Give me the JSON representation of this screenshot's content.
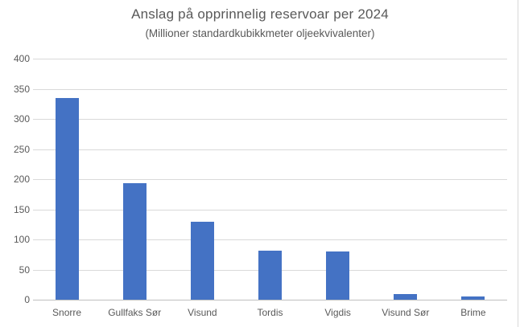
{
  "chart_data": {
    "type": "bar",
    "title": "Anslag på opprinnelig reservoar per 2024",
    "subtitle": "(Millioner standardkubikkmeter oljeekvivalenter)",
    "categories": [
      "Snorre",
      "Gullfaks Sør",
      "Visund",
      "Tordis",
      "Vigdis",
      "Visund Sør",
      "Brime"
    ],
    "values": [
      335,
      193,
      130,
      81,
      80,
      10,
      6
    ],
    "xlabel": "",
    "ylabel": "",
    "ylim": [
      0,
      400
    ],
    "yticks": [
      0,
      50,
      100,
      150,
      200,
      250,
      300,
      350,
      400
    ],
    "grid": true,
    "legend": false,
    "colors": {
      "bar": "#4472C4",
      "gridline": "#D9D9D9",
      "axis_line": "#C0C0C0",
      "text": "#595959",
      "background": "#FFFFFF",
      "chart_border": "#D9D9D9"
    }
  }
}
